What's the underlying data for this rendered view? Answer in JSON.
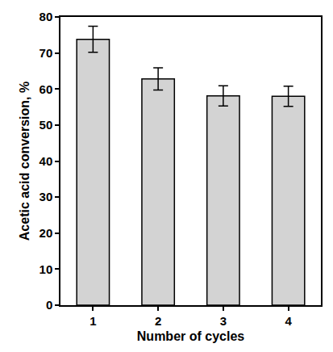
{
  "chart_data": {
    "type": "bar",
    "categories": [
      "1",
      "2",
      "3",
      "4"
    ],
    "values": [
      73.8,
      62.8,
      58.1,
      58.0
    ],
    "errors": [
      3.6,
      3.1,
      2.8,
      2.8
    ],
    "color": "#d3d3d3",
    "xlabel": "Number of cycles",
    "ylabel": "Acetic acid conversion, %",
    "ylim": [
      0,
      80
    ],
    "yticks": [
      0,
      10,
      20,
      30,
      40,
      50,
      60,
      70,
      80
    ],
    "grid": false
  }
}
